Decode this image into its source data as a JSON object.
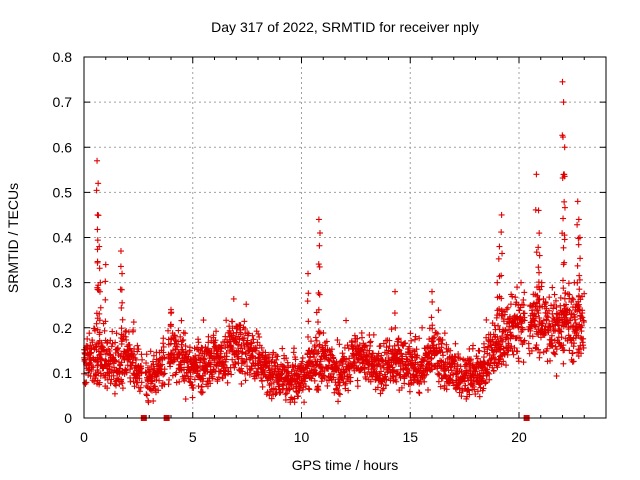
{
  "chart_data": {
    "type": "scatter",
    "title": "Day 317 of 2022, SRMTID for receiver nply",
    "xlabel": "GPS time / hours",
    "ylabel": "SRMTID / TECUs",
    "xlim": [
      0,
      24
    ],
    "ylim": [
      0,
      0.8
    ],
    "x_ticks": [
      0,
      5,
      10,
      15,
      20
    ],
    "x_tick_labels": [
      "0",
      "5",
      "10",
      "15",
      "20"
    ],
    "y_ticks": [
      0,
      0.1,
      0.2,
      0.3,
      0.4,
      0.5,
      0.6,
      0.7,
      0.8
    ],
    "y_tick_labels": [
      "0",
      "0.1",
      "0.2",
      "0.3",
      "0.4",
      "0.5",
      "0.6",
      "0.7",
      "0.8"
    ],
    "grid": true,
    "marker": "+",
    "color": "#e00000",
    "data_gaps_x": [
      2.75,
      3.8,
      20.35
    ],
    "baseline_profile": [
      [
        0.0,
        0.13
      ],
      [
        0.5,
        0.14
      ],
      [
        1.0,
        0.12
      ],
      [
        1.5,
        0.12
      ],
      [
        2.0,
        0.14
      ],
      [
        2.5,
        0.11
      ],
      [
        3.0,
        0.09
      ],
      [
        3.5,
        0.1
      ],
      [
        4.0,
        0.15
      ],
      [
        4.5,
        0.13
      ],
      [
        5.0,
        0.1
      ],
      [
        5.5,
        0.12
      ],
      [
        6.0,
        0.13
      ],
      [
        6.5,
        0.14
      ],
      [
        7.0,
        0.17
      ],
      [
        7.5,
        0.14
      ],
      [
        8.0,
        0.13
      ],
      [
        8.5,
        0.1
      ],
      [
        9.0,
        0.09
      ],
      [
        9.5,
        0.08
      ],
      [
        10.0,
        0.09
      ],
      [
        10.5,
        0.12
      ],
      [
        11.0,
        0.13
      ],
      [
        11.5,
        0.1
      ],
      [
        12.0,
        0.11
      ],
      [
        12.5,
        0.14
      ],
      [
        13.0,
        0.13
      ],
      [
        13.5,
        0.1
      ],
      [
        14.0,
        0.11
      ],
      [
        14.5,
        0.13
      ],
      [
        15.0,
        0.12
      ],
      [
        15.5,
        0.1
      ],
      [
        16.0,
        0.15
      ],
      [
        16.5,
        0.12
      ],
      [
        17.0,
        0.1
      ],
      [
        17.5,
        0.09
      ],
      [
        18.0,
        0.1
      ],
      [
        18.5,
        0.12
      ],
      [
        19.0,
        0.16
      ],
      [
        19.5,
        0.2
      ],
      [
        20.0,
        0.22
      ],
      [
        20.5,
        0.2
      ],
      [
        21.0,
        0.22
      ],
      [
        21.5,
        0.19
      ],
      [
        22.0,
        0.2
      ],
      [
        22.5,
        0.21
      ],
      [
        23.0,
        0.21
      ]
    ],
    "spikes": [
      [
        0.6,
        0.57
      ],
      [
        0.65,
        0.52
      ],
      [
        0.62,
        0.45
      ],
      [
        0.7,
        0.38
      ],
      [
        0.75,
        0.3
      ],
      [
        1.0,
        0.34
      ],
      [
        1.7,
        0.37
      ],
      [
        1.75,
        0.32
      ],
      [
        4.0,
        0.24
      ],
      [
        10.3,
        0.32
      ],
      [
        10.8,
        0.44
      ],
      [
        10.85,
        0.41
      ],
      [
        14.3,
        0.28
      ],
      [
        16.0,
        0.28
      ],
      [
        19.2,
        0.45
      ],
      [
        19.1,
        0.38
      ],
      [
        19.0,
        0.3
      ],
      [
        20.8,
        0.54
      ],
      [
        20.9,
        0.46
      ],
      [
        20.95,
        0.36
      ],
      [
        22.0,
        0.745
      ],
      [
        22.05,
        0.7
      ],
      [
        22.1,
        0.6
      ],
      [
        22.08,
        0.54
      ],
      [
        22.7,
        0.48
      ],
      [
        22.75,
        0.44
      ],
      [
        22.8,
        0.4
      ]
    ]
  }
}
